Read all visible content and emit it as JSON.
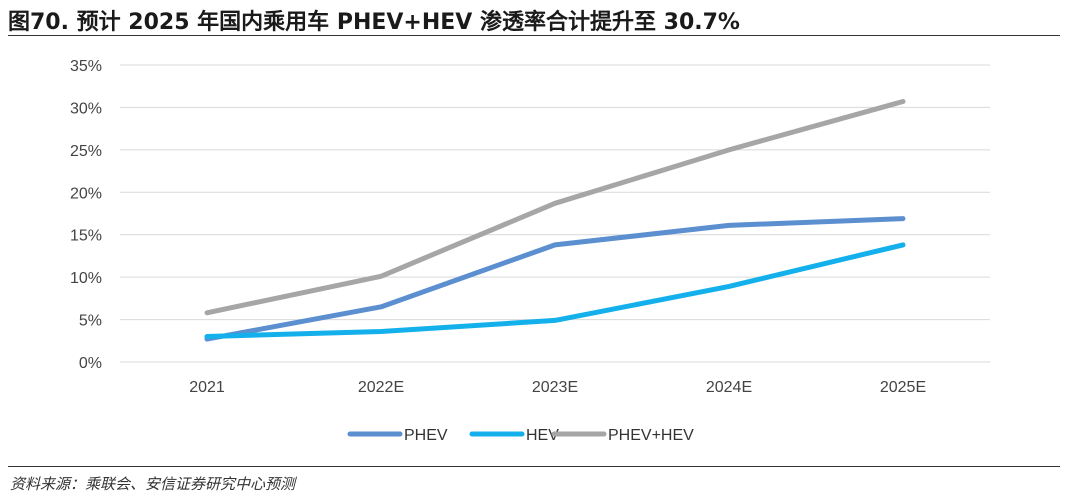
{
  "figure": {
    "title": "图70. 预计 2025 年国内乘用车 PHEV+HEV 渗透率合计提升至 30.7%",
    "source": "资料来源：乘联会、安信证券研究中心预测"
  },
  "chart_data": {
    "type": "line",
    "title": "图70. 预计 2025 年国内乘用车 PHEV+HEV 渗透率合计提升至 30.7%",
    "xlabel": "",
    "ylabel": "",
    "categories": [
      "2021",
      "2022E",
      "2023E",
      "2024E",
      "2025E"
    ],
    "ylim": [
      0,
      35
    ],
    "yticks": [
      "0%",
      "5%",
      "10%",
      "15%",
      "20%",
      "25%",
      "30%",
      "35%"
    ],
    "grid": true,
    "legend_position": "bottom",
    "series": [
      {
        "name": "PHEV",
        "color": "#5B8FD0",
        "values": [
          2.7,
          6.5,
          13.8,
          16.1,
          16.9
        ]
      },
      {
        "name": "HEV",
        "color": "#13B0EC",
        "values": [
          3.0,
          3.6,
          4.9,
          8.9,
          13.8
        ]
      },
      {
        "name": "PHEV+HEV",
        "color": "#A6A6A6",
        "values": [
          5.8,
          10.1,
          18.7,
          25.0,
          30.7
        ]
      }
    ]
  }
}
